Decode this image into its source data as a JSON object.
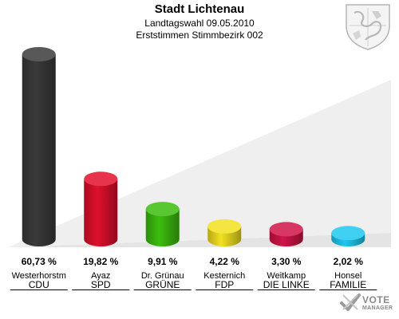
{
  "header": {
    "title": "Stadt Lichtenau",
    "subtitle": "Landtagswahl 09.05.2010",
    "subtitle2": "Erststimmen Stimmbezirk 002"
  },
  "branding": {
    "line1": "VOTE",
    "line2": "MANAGER"
  },
  "chart_data": {
    "type": "bar",
    "title": "Stadt Lichtenau",
    "subtitle": "Landtagswahl 09.05.2010 — Erststimmen Stimmbezirk 002",
    "ylim": [
      0,
      65
    ],
    "grid": false,
    "categories": [
      "CDU",
      "SPD",
      "GRÜNE",
      "FDP",
      "DIE LINKE",
      "FAMILIE"
    ],
    "candidates": [
      "Westerhorstm",
      "Ayaz",
      "Dr. Grünau",
      "Kesternich",
      "Weitkamp",
      "Honsel"
    ],
    "values": [
      60.73,
      19.82,
      9.91,
      4.22,
      3.3,
      2.02
    ],
    "value_labels": [
      "60,73 %",
      "19,82 %",
      "9,91 %",
      "4,22 %",
      "3,30 %",
      "2,02 %"
    ],
    "colors": [
      "#3a3a3a",
      "#e0102c",
      "#3cbd0e",
      "#f2e020",
      "#d01448",
      "#1ec8f0"
    ]
  }
}
